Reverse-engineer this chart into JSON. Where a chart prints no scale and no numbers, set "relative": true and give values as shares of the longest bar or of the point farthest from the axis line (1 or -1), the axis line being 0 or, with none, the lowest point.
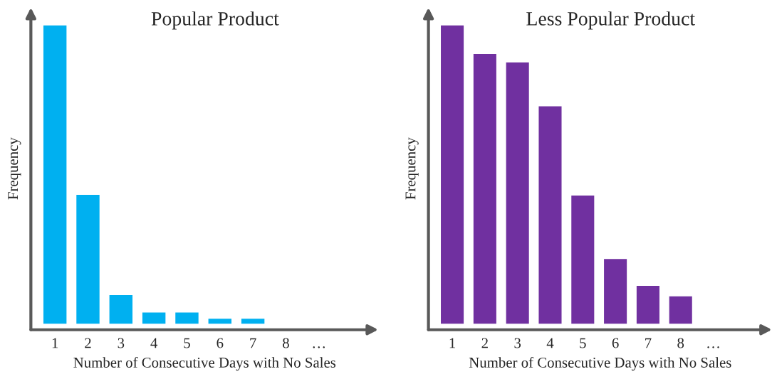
{
  "chart_data": [
    {
      "type": "bar",
      "title": "Popular Product",
      "xlabel": "Number of Consecutive Days with No Sales",
      "ylabel": "Frequency",
      "relative": true,
      "categories": [
        "1",
        "2",
        "3",
        "4",
        "5",
        "6",
        "7",
        "8",
        "…"
      ],
      "values": [
        1,
        0.432,
        0.096,
        0.038,
        0.038,
        0.017,
        0.017,
        null,
        null
      ],
      "color": "#00b0f0"
    },
    {
      "type": "bar",
      "title": "Less Popular Product",
      "xlabel": "Number of Consecutive Days with No Sales",
      "ylabel": "Frequency",
      "relative": true,
      "categories": [
        "1",
        "2",
        "3",
        "4",
        "5",
        "6",
        "7",
        "8",
        "…"
      ],
      "values": [
        1,
        0.904,
        0.876,
        0.729,
        0.43,
        0.217,
        0.127,
        0.092,
        null
      ],
      "color": "#7030a0"
    }
  ]
}
